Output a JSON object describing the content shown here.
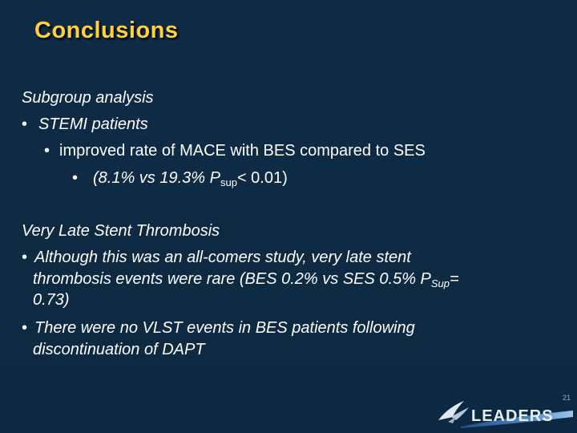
{
  "slide": {
    "title": "Conclusions",
    "page_number": "21",
    "logo_text": "LEADERS"
  },
  "section1": {
    "heading": "Subgroup analysis",
    "bullet1": "STEMI patients",
    "bullet2": "improved rate of MACE with BES compared to SES",
    "bullet3_pre": "(8.1% vs 19.3% P",
    "bullet3_sub": "sup",
    "bullet3_post": "< 0.01)"
  },
  "section2": {
    "heading": "Very Late Stent Thrombosis",
    "bullet1_line1": "Although this was an all-comers study, very late stent",
    "bullet1_line2_pre": "thrombosis events were rare (BES 0.2% vs SES 0.5% P",
    "bullet1_line2_sub": "Sup",
    "bullet1_line2_post": "=",
    "bullet1_line3": "0.73)",
    "bullet2_line1": "There were no VLST events in BES patients following",
    "bullet2_line2": "discontinuation of DAPT"
  },
  "colors": {
    "background": "#0f2a44",
    "title": "#ffd23a",
    "text": "#ffffff"
  }
}
